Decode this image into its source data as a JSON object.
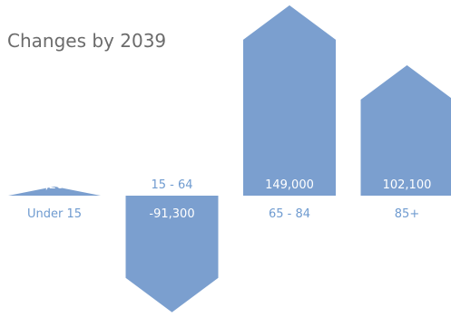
{
  "chart_data": {
    "type": "bar",
    "title": "Changes by 2039",
    "categories": [
      "Under 15",
      "15 - 64",
      "65 - 84",
      "85+"
    ],
    "values": [
      7200,
      -91300,
      149000,
      102100
    ],
    "value_labels": [
      "7,200",
      "-91,300",
      "149,000",
      "102,100"
    ],
    "ylim": [
      -91300,
      149000
    ],
    "grid": false,
    "legend": "none",
    "mark_shape": "arrow"
  },
  "colors": {
    "bar": "#7b9fcf",
    "title": "#6b6b6b",
    "category_label": "#6f9bd0",
    "value_label_inside": "#ffffff"
  }
}
